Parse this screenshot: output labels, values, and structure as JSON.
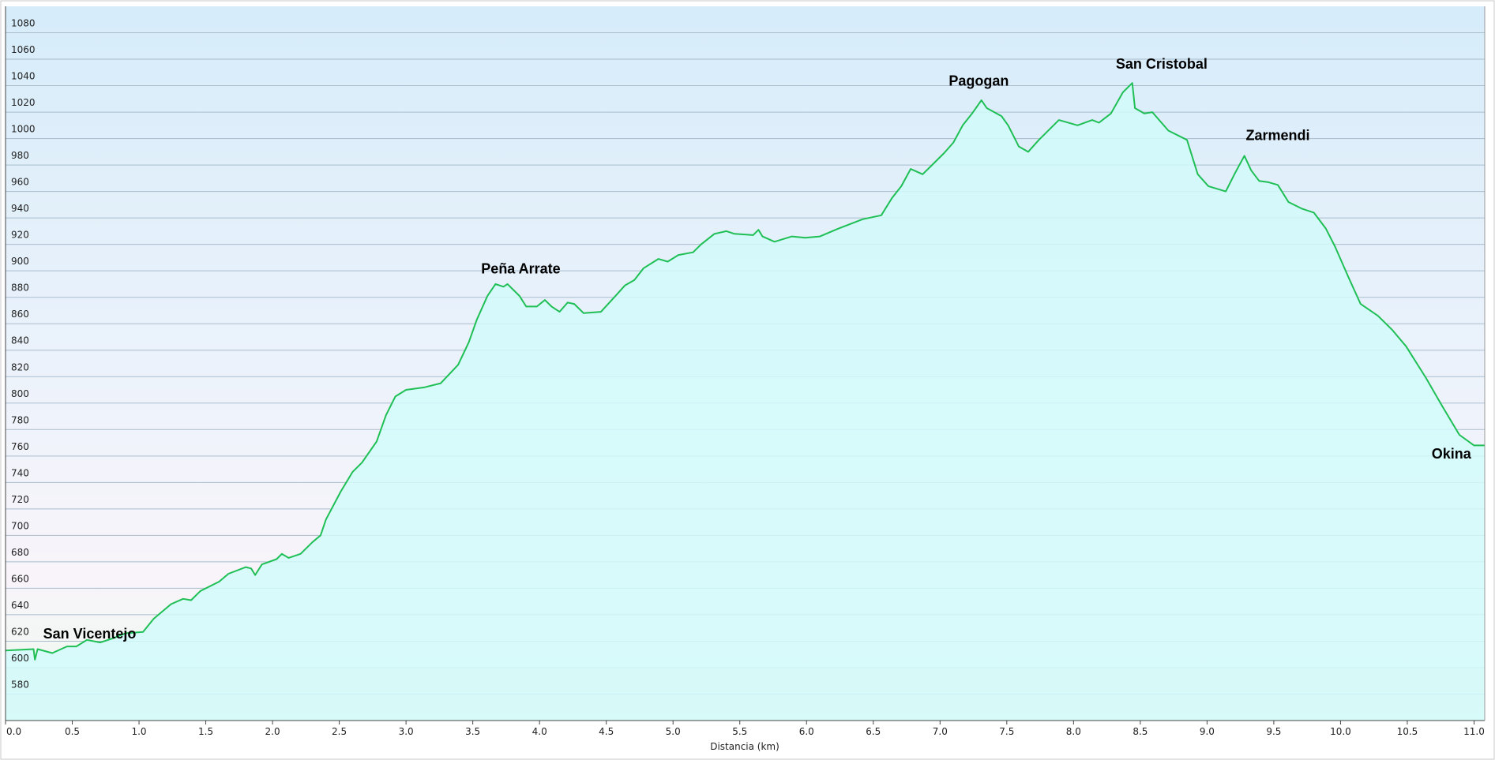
{
  "chart_data": {
    "type": "area",
    "x_label": "Distancia  (km)",
    "x": [
      0,
      0.21,
      0.22,
      0.24,
      0.35,
      0.46,
      0.53,
      0.61,
      0.71,
      0.8,
      0.9,
      1.03,
      1.11,
      1.24,
      1.33,
      1.39,
      1.46,
      1.6,
      1.67,
      1.8,
      1.84,
      1.87,
      1.92,
      2.03,
      2.07,
      2.12,
      2.21,
      2.3,
      2.36,
      2.4,
      2.51,
      2.6,
      2.67,
      2.78,
      2.85,
      2.92,
      3.0,
      3.14,
      3.26,
      3.39,
      3.47,
      3.53,
      3.61,
      3.67,
      3.73,
      3.76,
      3.85,
      3.9,
      3.98,
      4.04,
      4.09,
      4.15,
      4.21,
      4.26,
      4.33,
      4.46,
      4.56,
      4.64,
      4.71,
      4.78,
      4.89,
      4.96,
      5.04,
      5.15,
      5.21,
      5.31,
      5.4,
      5.46,
      5.6,
      5.64,
      5.67,
      5.76,
      5.89,
      5.99,
      6.1,
      6.24,
      6.42,
      6.56,
      6.64,
      6.71,
      6.78,
      6.87,
      6.94,
      7.03,
      7.1,
      7.17,
      7.24,
      7.31,
      7.35,
      7.46,
      7.51,
      7.59,
      7.66,
      7.74,
      7.89,
      8.03,
      8.14,
      8.19,
      8.28,
      8.37,
      8.44,
      8.46,
      8.53,
      8.59,
      8.71,
      8.85,
      8.93,
      9.01,
      9.14,
      9.21,
      9.28,
      9.33,
      9.39,
      9.46,
      9.53,
      9.61,
      9.71,
      9.8,
      9.89,
      9.96,
      10.06,
      10.15,
      10.28,
      10.39,
      10.49,
      10.64,
      10.76,
      10.89,
      11.0,
      11.08
    ],
    "values": [
      613,
      614,
      606,
      614,
      611,
      616,
      616,
      621,
      619,
      622,
      626,
      627,
      637,
      648,
      652,
      651,
      658,
      665,
      671,
      676,
      675,
      670,
      678,
      682,
      686,
      683,
      686,
      695,
      700,
      712,
      733,
      748,
      755,
      771,
      791,
      805,
      810,
      812,
      815,
      829,
      846,
      863,
      881,
      890,
      888,
      890,
      881,
      873,
      873,
      878,
      873,
      869,
      876,
      875,
      868,
      869,
      880,
      889,
      893,
      902,
      909,
      907,
      912,
      914,
      920,
      928,
      930,
      928,
      927,
      931,
      926,
      922,
      926,
      925,
      926,
      932,
      939,
      942,
      955,
      964,
      977,
      973,
      980,
      989,
      997,
      1010,
      1019,
      1029,
      1023,
      1017,
      1010,
      994,
      990,
      999,
      1014,
      1010,
      1014,
      1012,
      1019,
      1035,
      1042,
      1023,
      1019,
      1020,
      1006,
      999,
      973,
      964,
      960,
      974,
      987,
      976,
      968,
      967,
      965,
      952,
      947,
      944,
      932,
      918,
      895,
      875,
      866,
      855,
      843,
      819,
      798,
      776,
      768,
      768
    ],
    "color": "#1fbf55",
    "fill": "#d2fafa",
    "xlim": [
      0,
      11.08
    ],
    "ylim": [
      560,
      1100
    ],
    "xticks": [
      {
        "value": 0,
        "label": "0.0"
      },
      {
        "value": 0.5,
        "label": "0.5"
      },
      {
        "value": 1,
        "label": "1.0"
      },
      {
        "value": 1.5,
        "label": "1.5"
      },
      {
        "value": 2,
        "label": "2.0"
      },
      {
        "value": 2.5,
        "label": "2.5"
      },
      {
        "value": 3,
        "label": "3.0"
      },
      {
        "value": 3.5,
        "label": "3.5"
      },
      {
        "value": 4,
        "label": "4.0"
      },
      {
        "value": 4.5,
        "label": "4.5"
      },
      {
        "value": 5,
        "label": "5.0"
      },
      {
        "value": 5.5,
        "label": "5.5"
      },
      {
        "value": 6,
        "label": "6.0"
      },
      {
        "value": 6.5,
        "label": "6.5"
      },
      {
        "value": 7,
        "label": "7.0"
      },
      {
        "value": 7.5,
        "label": "7.5"
      },
      {
        "value": 8,
        "label": "8.0"
      },
      {
        "value": 8.5,
        "label": "8.5"
      },
      {
        "value": 9,
        "label": "9.0"
      },
      {
        "value": 9.5,
        "label": "9.5"
      },
      {
        "value": 10,
        "label": "10.0"
      },
      {
        "value": 10.5,
        "label": "10.5"
      },
      {
        "value": 11,
        "label": "11.0"
      }
    ],
    "yticks": [
      580,
      600,
      620,
      640,
      660,
      680,
      700,
      720,
      740,
      760,
      780,
      800,
      820,
      840,
      860,
      880,
      900,
      920,
      940,
      960,
      980,
      1000,
      1020,
      1040,
      1060,
      1080
    ],
    "grid": true,
    "annotations": [
      {
        "text": "San Vicentejo",
        "x": 0.63,
        "y": 622
      },
      {
        "text": "Peña Arrate",
        "x": 3.86,
        "y": 898
      },
      {
        "text": "Pagogan",
        "x": 7.29,
        "y": 1040
      },
      {
        "text": "San Cristobal",
        "x": 8.66,
        "y": 1053
      },
      {
        "text": "Zarmendi",
        "x": 9.53,
        "y": 999
      },
      {
        "text": "Okina",
        "x": 10.83,
        "y": 758
      }
    ]
  }
}
